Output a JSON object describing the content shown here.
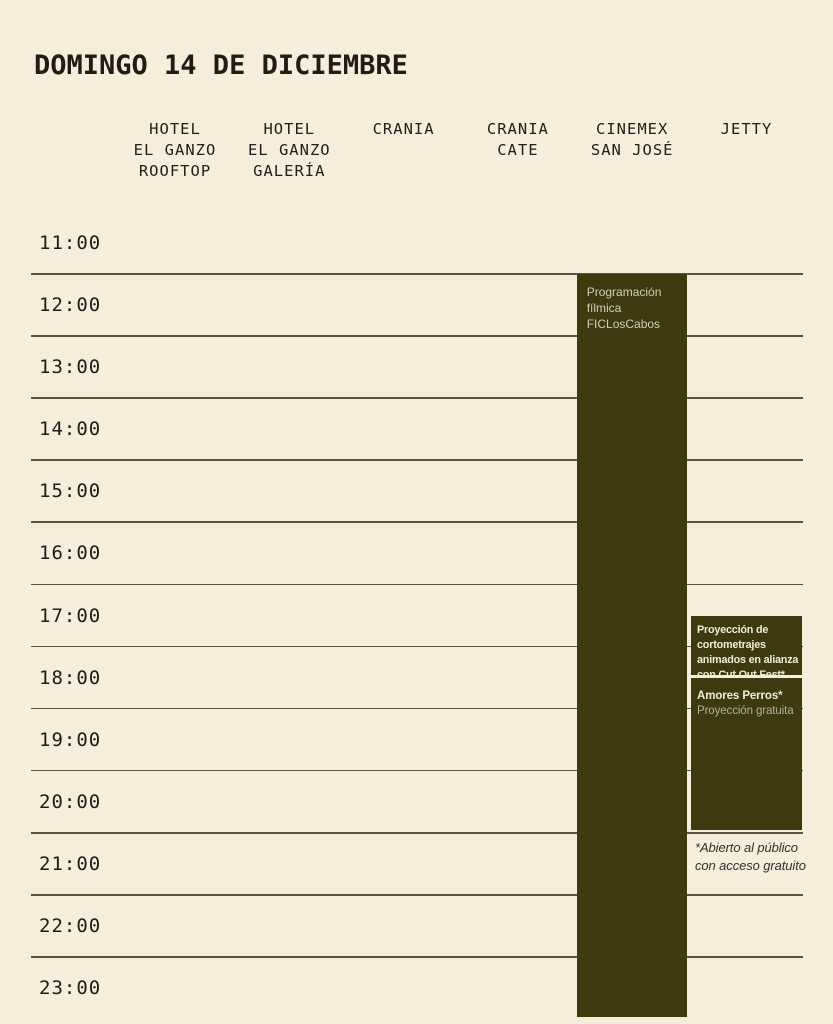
{
  "page": {
    "title": "DOMINGO 14 DE DICIEMBRE"
  },
  "colors": {
    "background": "#f5eedb",
    "event_block": "#3c3a0e",
    "gridline": "#55524a",
    "event_title_text": "#f0edda",
    "event_body_text": "#c9c6af",
    "heading_text": "#1f1d16"
  },
  "schedule": {
    "time_labels": [
      "11:00",
      "12:00",
      "13:00",
      "14:00",
      "15:00",
      "16:00",
      "17:00",
      "18:00",
      "19:00",
      "20:00",
      "21:00",
      "22:00",
      "23:00"
    ],
    "venues": [
      {
        "id": "hotel-el-ganzo-rooftop",
        "label": "HOTEL\nEL GANZO\nROOFTOP"
      },
      {
        "id": "hotel-el-ganzo-galeria",
        "label": "HOTEL\nEL GANZO\nGALERÍA"
      },
      {
        "id": "crania",
        "label": "CRANIA"
      },
      {
        "id": "crania-cate",
        "label": "CRANIA\nCATE"
      },
      {
        "id": "cinemex-san-jose",
        "label": "CINEMEX\nSAN JOSÉ"
      },
      {
        "id": "jetty",
        "label": "JETTY"
      }
    ],
    "events": [
      {
        "id": "programacion-filmica",
        "venue_index": 4,
        "start": "12:00",
        "end": "24:00",
        "title": "",
        "body": "Programación\nfílmica\nFICLosCabos"
      },
      {
        "id": "cortometrajes-cutoutfest",
        "venue_index": 5,
        "start": "17:30",
        "end": "18:30",
        "title": "Proyección de\ncortometrajes\nanimados en alianza\ncon Cut Out Fest*",
        "body": ""
      },
      {
        "id": "amores-perros",
        "venue_index": 5,
        "start": "18:30",
        "end": "21:00",
        "title": "Amores Perros*",
        "body": "Proyección gratuita"
      }
    ],
    "footnote": "*Abierto al público\ncon acceso gratuito"
  }
}
